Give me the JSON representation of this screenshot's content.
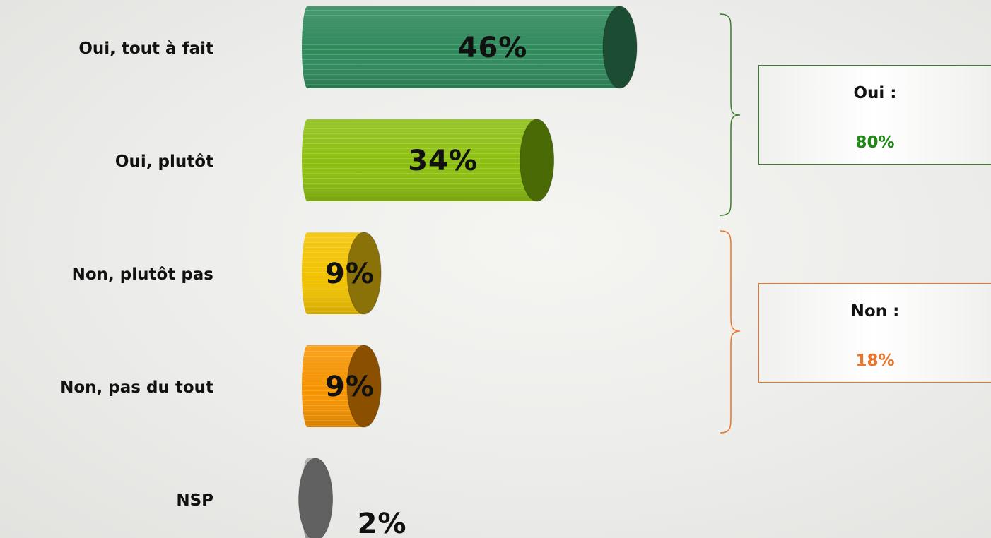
{
  "chart_data": {
    "type": "bar",
    "orientation": "horizontal",
    "categories": [
      "Oui, tout à fait",
      "Oui, plutôt",
      "Non, plutôt pas",
      "Non, pas du tout",
      "NSP"
    ],
    "values": [
      46,
      34,
      9,
      9,
      2
    ],
    "value_labels": [
      "46%",
      "34%",
      "9%",
      "9%",
      "2%"
    ],
    "unit": "%",
    "colors": [
      "#2f8a5c",
      "#8cbf10",
      "#f2c200",
      "#f79400",
      "#a8a8a8"
    ],
    "cap_colors": [
      "#1c4d33",
      "#4a6a05",
      "#8a7208",
      "#8a5000",
      "#616161"
    ],
    "xlim": [
      0,
      46
    ],
    "grid": false,
    "legend": "none"
  },
  "summary": {
    "oui": {
      "label": "Oui :",
      "value": "80%",
      "color": "#1e8a14",
      "border": "#3a7d2a"
    },
    "non": {
      "label": "Non :",
      "value": "18%",
      "color": "#ec7426",
      "border": "#ec7426"
    }
  },
  "brace_colors": {
    "oui": "#3a7d2a",
    "non": "#ec7426"
  }
}
